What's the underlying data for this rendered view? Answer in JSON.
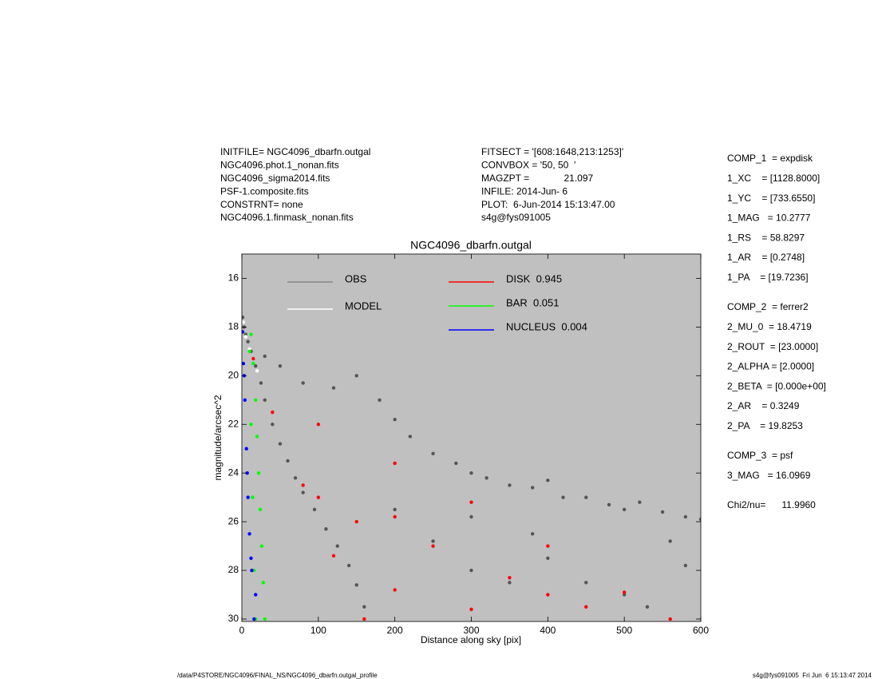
{
  "header": {
    "left": [
      "INITFILE= NGC4096_dbarfn.outgal",
      "NGC4096.phot.1_nonan.fits",
      "NGC4096_sigma2014.fits",
      "PSF-1.composite.fits",
      "CONSTRNT= none",
      "NGC4096.1.finmask_nonan.fits"
    ],
    "middle": [
      "FITSECT = '[608:1648,213:1253]'",
      "CONVBOX = '50, 50  '",
      "MAGZPT =             21.097",
      "INFILE: 2014-Jun- 6",
      "PLOT:  6-Jun-2014 15:13:47.00",
      "s4g@fys091005"
    ]
  },
  "parameters": [
    [
      "COMP_1  = expdisk",
      "1_XC    = [1128.8000]",
      "1_YC    = [733.6550]",
      "1_MAG   = 10.2777",
      "1_RS    = 58.8297",
      "1_AR    = [0.2748]",
      "1_PA    = [19.7236]"
    ],
    [
      "COMP_2  = ferrer2",
      "2_MU_0  = 18.4719",
      "2_ROUT  = [23.0000]",
      "2_ALPHA = [2.0000]",
      "2_BETA  = [0.000e+00]",
      "2_AR    = 0.3249",
      "2_PA    = 19.8253"
    ],
    [
      "COMP_3  = psf",
      "3_MAG   = 16.0969"
    ],
    [
      "Chi2/nu=      11.9960"
    ]
  ],
  "footer": {
    "left": "/data/P4STORE/NGC4096/FINAL_NS/NGC4096_dbarfn.outgal_profile",
    "right": "s4g@fys091005  Fri Jun  6 15:13:47 2014"
  },
  "chart_data": {
    "type": "scatter",
    "title": "NGC4096_dbarfn.outgal",
    "x_label": "Distance along sky [pix]",
    "y_label": "magnitude/arcsec^2",
    "xlim": [
      0,
      600
    ],
    "ylim": [
      30.1,
      15
    ],
    "xticks": [
      0,
      100,
      200,
      300,
      400,
      500,
      600
    ],
    "yticks": [
      16,
      18,
      20,
      22,
      24,
      26,
      28,
      30
    ],
    "background": "#c0c0c0",
    "series": [
      {
        "name": "OBS",
        "color": "#555555",
        "legend_color": "#888888",
        "x": [
          1,
          3,
          5,
          8,
          12,
          18,
          25,
          30,
          40,
          50,
          60,
          70,
          80,
          95,
          110,
          125,
          140,
          150,
          160,
          30,
          50,
          80,
          120,
          150,
          180,
          200,
          220,
          250,
          280,
          300,
          320,
          350,
          380,
          400,
          420,
          450,
          480,
          500,
          520,
          550,
          580,
          600,
          200,
          250,
          300,
          350,
          400,
          450,
          500,
          530,
          580,
          560,
          300,
          380
        ],
        "y": [
          17.6,
          18.0,
          18.3,
          18.6,
          19.0,
          19.6,
          20.3,
          21.0,
          22.0,
          22.8,
          23.5,
          24.2,
          24.8,
          25.5,
          26.3,
          27.0,
          27.8,
          28.6,
          29.5,
          19.2,
          19.6,
          20.3,
          20.5,
          20.0,
          21.0,
          21.8,
          22.5,
          23.2,
          23.6,
          24.0,
          24.2,
          24.5,
          24.6,
          24.3,
          25.0,
          25.0,
          25.3,
          25.5,
          25.2,
          25.6,
          25.8,
          25.9,
          25.5,
          26.8,
          28.0,
          28.5,
          27.5,
          28.5,
          29.0,
          29.5,
          27.8,
          26.8,
          25.8,
          26.5
        ]
      },
      {
        "name": "MODEL",
        "color": "#ffffff",
        "x": [
          2,
          5,
          10,
          15,
          20
        ],
        "y": [
          17.8,
          18.4,
          18.9,
          19.3,
          19.8
        ]
      },
      {
        "name": "DISK  0.945",
        "color": "#ff0000",
        "x": [
          15,
          100,
          200,
          300,
          400,
          500,
          560,
          40,
          80,
          120,
          160,
          150,
          250,
          350,
          450,
          200,
          300,
          100,
          200,
          400
        ],
        "y": [
          19.3,
          22.0,
          23.6,
          25.2,
          27.0,
          28.9,
          30.0,
          21.5,
          24.5,
          27.4,
          30.0,
          26.0,
          27.0,
          28.3,
          29.5,
          28.8,
          29.6,
          25.0,
          25.8,
          29.0
        ]
      },
      {
        "name": "BAR  0.051",
        "color": "#00ff00",
        "x": [
          12,
          15,
          18,
          20,
          22,
          24,
          26,
          28,
          30,
          10,
          12,
          14,
          16,
          18
        ],
        "y": [
          18.3,
          19.5,
          21,
          22.5,
          24,
          25.5,
          27,
          28.5,
          30,
          19,
          22,
          25,
          28,
          30
        ]
      },
      {
        "name": "NUCLEUS  0.004",
        "color": "#0000ff",
        "x": [
          1,
          2,
          4,
          6,
          8,
          10,
          13,
          16,
          3,
          7,
          12,
          18
        ],
        "y": [
          18.2,
          19.5,
          21,
          23,
          25,
          26.5,
          28,
          30,
          20,
          24,
          27.5,
          29
        ]
      }
    ]
  }
}
